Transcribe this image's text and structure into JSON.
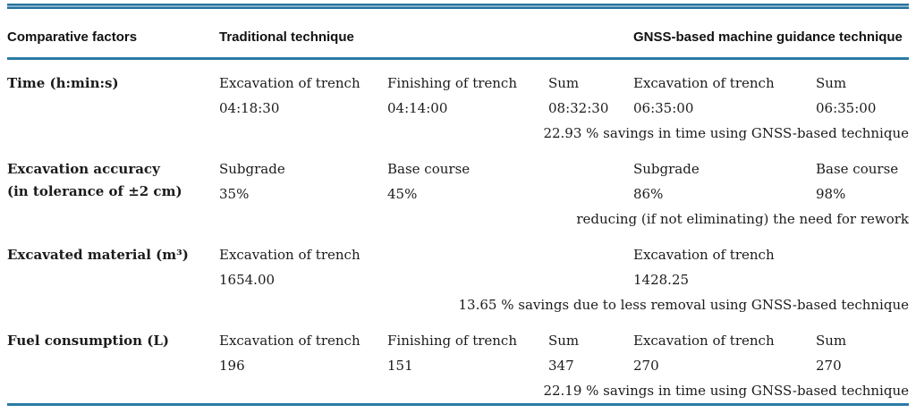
{
  "table": {
    "headers": {
      "factors": "Comparative factors",
      "traditional": "Traditional technique",
      "gnss": "GNSS-based machine guidance technique"
    },
    "rows": [
      {
        "factor": "Time (h:min:s)",
        "factor2": "",
        "cells": [
          {
            "label": "Excavation of trench",
            "value": "04:18:30"
          },
          {
            "label": "Finishing of trench",
            "value": "04:14:00"
          },
          {
            "label": "Sum",
            "value": "08:32:30"
          },
          {
            "label": "Excavation of trench",
            "value": "06:35:00"
          },
          {
            "label": "Sum",
            "value": "06:35:00"
          }
        ],
        "note": "22.93 % savings in time using GNSS-based technique"
      },
      {
        "factor": "Excavation accuracy",
        "factor2": "(in tolerance of ±2 cm)",
        "cells": [
          {
            "label": "Subgrade",
            "value": "35%"
          },
          {
            "label": "Base course",
            "value": "45%"
          },
          {
            "label": "",
            "value": ""
          },
          {
            "label": "Subgrade",
            "value": "86%"
          },
          {
            "label": "Base course",
            "value": "98%"
          }
        ],
        "note": "reducing (if not eliminating) the need for rework"
      },
      {
        "factor": "Excavated material (m³)",
        "factor2": "",
        "cells": [
          {
            "label": "Excavation of trench",
            "value": "1654.00"
          },
          {
            "label": "",
            "value": ""
          },
          {
            "label": "",
            "value": ""
          },
          {
            "label": "Excavation of trench",
            "value": "1428.25"
          },
          {
            "label": "",
            "value": ""
          }
        ],
        "note": "13.65 % savings due to less removal using GNSS-based technique"
      },
      {
        "factor": "Fuel consumption (L)",
        "factor2": "",
        "cells": [
          {
            "label": "Excavation of trench",
            "value": "196"
          },
          {
            "label": "Finishing of trench",
            "value": "151"
          },
          {
            "label": "Sum",
            "value": "347"
          },
          {
            "label": "Excavation of trench",
            "value": "270"
          },
          {
            "label": "Sum",
            "value": "270"
          }
        ],
        "note": "22.19 % savings in time using GNSS-based technique"
      }
    ]
  }
}
